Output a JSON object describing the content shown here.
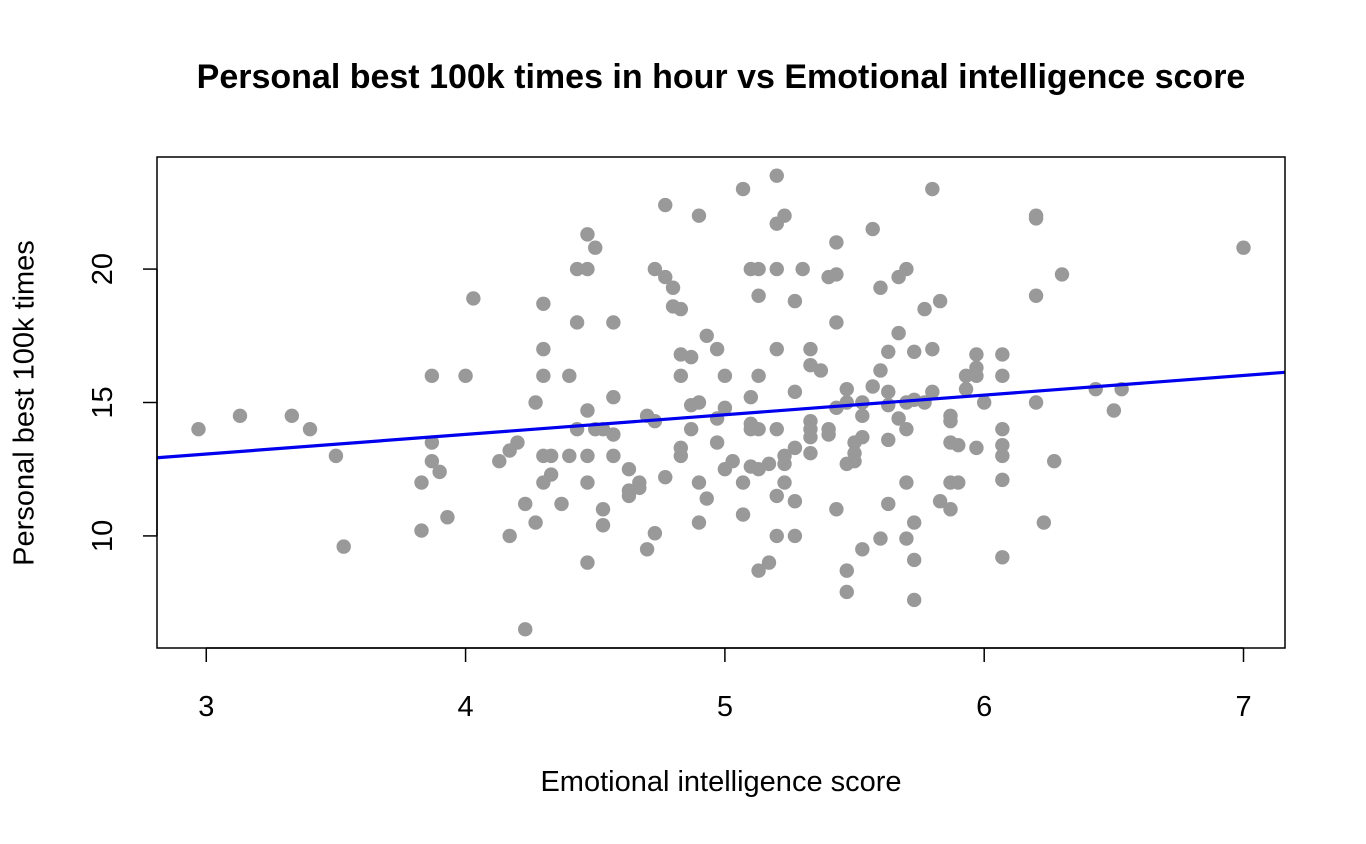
{
  "chart_data": {
    "type": "scatter",
    "title": "Personal best 100k times in hour vs Emotional intelligence score",
    "xlabel": "Emotional intelligence score",
    "ylabel": "Personal best 100k times",
    "xlim": [
      2.81,
      7.16
    ],
    "ylim": [
      5.8,
      24.2
    ],
    "xticks": [
      3,
      4,
      5,
      6,
      7
    ],
    "yticks": [
      10,
      15,
      20
    ],
    "point_color": "#999999",
    "line_color": "#0000ee",
    "regression_line": {
      "intercept": 10.86,
      "slope": 0.7363
    },
    "grid": false,
    "legend": "none",
    "points": [
      [
        2.97,
        14.0
      ],
      [
        3.13,
        14.5
      ],
      [
        3.33,
        14.5
      ],
      [
        3.4,
        14.0
      ],
      [
        3.5,
        13.0
      ],
      [
        3.53,
        9.6
      ],
      [
        3.83,
        12.0
      ],
      [
        3.83,
        10.2
      ],
      [
        3.87,
        13.5
      ],
      [
        3.87,
        16.0
      ],
      [
        3.87,
        12.8
      ],
      [
        3.9,
        12.4
      ],
      [
        3.93,
        10.7
      ],
      [
        4.0,
        16.0
      ],
      [
        4.03,
        18.9
      ],
      [
        4.13,
        12.8
      ],
      [
        4.17,
        13.2
      ],
      [
        4.17,
        10.0
      ],
      [
        4.2,
        13.5
      ],
      [
        4.23,
        11.2
      ],
      [
        4.23,
        6.5
      ],
      [
        4.27,
        15.0
      ],
      [
        4.27,
        10.5
      ],
      [
        4.3,
        18.7
      ],
      [
        4.3,
        17.0
      ],
      [
        4.3,
        16.0
      ],
      [
        4.3,
        13.0
      ],
      [
        4.3,
        12.0
      ],
      [
        4.33,
        13.0
      ],
      [
        4.33,
        12.3
      ],
      [
        4.37,
        11.2
      ],
      [
        4.4,
        16.0
      ],
      [
        4.4,
        13.0
      ],
      [
        4.43,
        20.0
      ],
      [
        4.43,
        18.0
      ],
      [
        4.43,
        14.0
      ],
      [
        4.47,
        21.3
      ],
      [
        4.47,
        20.0
      ],
      [
        4.47,
        14.7
      ],
      [
        4.47,
        13.0
      ],
      [
        4.47,
        12.0
      ],
      [
        4.47,
        9.0
      ],
      [
        4.5,
        20.8
      ],
      [
        4.5,
        14.0
      ],
      [
        4.53,
        14.0
      ],
      [
        4.53,
        11.0
      ],
      [
        4.53,
        10.4
      ],
      [
        4.57,
        18.0
      ],
      [
        4.57,
        15.2
      ],
      [
        4.57,
        13.8
      ],
      [
        4.57,
        13.0
      ],
      [
        4.63,
        12.5
      ],
      [
        4.63,
        11.7
      ],
      [
        4.63,
        11.5
      ],
      [
        4.67,
        12.0
      ],
      [
        4.67,
        11.8
      ],
      [
        4.7,
        14.5
      ],
      [
        4.7,
        9.5
      ],
      [
        4.73,
        20.0
      ],
      [
        4.73,
        14.3
      ],
      [
        4.73,
        10.1
      ],
      [
        4.77,
        22.4
      ],
      [
        4.77,
        19.7
      ],
      [
        4.77,
        12.2
      ],
      [
        4.8,
        19.3
      ],
      [
        4.8,
        18.6
      ],
      [
        4.83,
        18.5
      ],
      [
        4.83,
        16.8
      ],
      [
        4.83,
        16.0
      ],
      [
        4.83,
        13.3
      ],
      [
        4.83,
        13.0
      ],
      [
        4.87,
        16.7
      ],
      [
        4.87,
        14.9
      ],
      [
        4.87,
        14.0
      ],
      [
        4.9,
        22.0
      ],
      [
        4.9,
        15.0
      ],
      [
        4.9,
        12.0
      ],
      [
        4.9,
        10.5
      ],
      [
        4.93,
        17.5
      ],
      [
        4.93,
        11.4
      ],
      [
        4.97,
        17.0
      ],
      [
        4.97,
        14.4
      ],
      [
        4.97,
        13.5
      ],
      [
        5.0,
        16.0
      ],
      [
        5.0,
        14.8
      ],
      [
        5.0,
        12.5
      ],
      [
        5.03,
        12.8
      ],
      [
        5.07,
        23.0
      ],
      [
        5.07,
        12.0
      ],
      [
        5.07,
        10.8
      ],
      [
        5.1,
        20.0
      ],
      [
        5.1,
        15.2
      ],
      [
        5.1,
        14.2
      ],
      [
        5.1,
        14.0
      ],
      [
        5.1,
        12.6
      ],
      [
        5.13,
        20.0
      ],
      [
        5.13,
        19.0
      ],
      [
        5.13,
        16.0
      ],
      [
        5.13,
        14.0
      ],
      [
        5.13,
        12.5
      ],
      [
        5.13,
        8.7
      ],
      [
        5.17,
        12.7
      ],
      [
        5.17,
        9.0
      ],
      [
        5.2,
        23.5
      ],
      [
        5.2,
        21.7
      ],
      [
        5.2,
        20.0
      ],
      [
        5.2,
        17.0
      ],
      [
        5.2,
        14.0
      ],
      [
        5.2,
        11.5
      ],
      [
        5.2,
        10.0
      ],
      [
        5.23,
        22.0
      ],
      [
        5.23,
        13.0
      ],
      [
        5.23,
        12.7
      ],
      [
        5.23,
        12.0
      ],
      [
        5.27,
        18.8
      ],
      [
        5.27,
        15.4
      ],
      [
        5.27,
        13.3
      ],
      [
        5.27,
        11.3
      ],
      [
        5.27,
        10.0
      ],
      [
        5.3,
        20.0
      ],
      [
        5.33,
        17.0
      ],
      [
        5.33,
        16.4
      ],
      [
        5.33,
        14.3
      ],
      [
        5.33,
        14.0
      ],
      [
        5.33,
        13.7
      ],
      [
        5.33,
        13.1
      ],
      [
        5.37,
        16.2
      ],
      [
        5.4,
        19.7
      ],
      [
        5.4,
        14.0
      ],
      [
        5.4,
        13.8
      ],
      [
        5.43,
        21.0
      ],
      [
        5.43,
        19.8
      ],
      [
        5.43,
        18.0
      ],
      [
        5.43,
        14.8
      ],
      [
        5.43,
        11.0
      ],
      [
        5.47,
        15.5
      ],
      [
        5.47,
        15.0
      ],
      [
        5.47,
        12.7
      ],
      [
        5.47,
        8.7
      ],
      [
        5.47,
        7.9
      ],
      [
        5.5,
        13.5
      ],
      [
        5.5,
        13.1
      ],
      [
        5.5,
        12.8
      ],
      [
        5.53,
        15.0
      ],
      [
        5.53,
        14.5
      ],
      [
        5.53,
        13.7
      ],
      [
        5.53,
        9.5
      ],
      [
        5.57,
        21.5
      ],
      [
        5.57,
        15.6
      ],
      [
        5.6,
        19.3
      ],
      [
        5.6,
        16.2
      ],
      [
        5.6,
        9.9
      ],
      [
        5.63,
        16.9
      ],
      [
        5.63,
        15.4
      ],
      [
        5.63,
        14.9
      ],
      [
        5.63,
        13.6
      ],
      [
        5.63,
        11.2
      ],
      [
        5.67,
        19.7
      ],
      [
        5.67,
        17.6
      ],
      [
        5.67,
        14.4
      ],
      [
        5.7,
        20.0
      ],
      [
        5.7,
        15.0
      ],
      [
        5.7,
        14.0
      ],
      [
        5.7,
        12.0
      ],
      [
        5.7,
        9.9
      ],
      [
        5.73,
        16.9
      ],
      [
        5.73,
        15.1
      ],
      [
        5.73,
        10.5
      ],
      [
        5.73,
        9.1
      ],
      [
        5.73,
        7.6
      ],
      [
        5.77,
        18.5
      ],
      [
        5.77,
        15.0
      ],
      [
        5.8,
        23.0
      ],
      [
        5.8,
        17.0
      ],
      [
        5.8,
        15.4
      ],
      [
        5.83,
        18.8
      ],
      [
        5.83,
        11.3
      ],
      [
        5.87,
        14.5
      ],
      [
        5.87,
        14.3
      ],
      [
        5.87,
        13.5
      ],
      [
        5.87,
        12.0
      ],
      [
        5.87,
        11.0
      ],
      [
        5.9,
        13.4
      ],
      [
        5.9,
        12.0
      ],
      [
        5.93,
        16.0
      ],
      [
        5.93,
        15.5
      ],
      [
        5.97,
        16.8
      ],
      [
        5.97,
        16.3
      ],
      [
        5.97,
        16.0
      ],
      [
        5.97,
        13.3
      ],
      [
        6.0,
        15.0
      ],
      [
        6.07,
        16.8
      ],
      [
        6.07,
        16.0
      ],
      [
        6.07,
        14.0
      ],
      [
        6.07,
        13.4
      ],
      [
        6.07,
        13.0
      ],
      [
        6.07,
        12.1
      ],
      [
        6.07,
        9.2
      ],
      [
        6.2,
        22.0
      ],
      [
        6.2,
        21.9
      ],
      [
        6.2,
        19.0
      ],
      [
        6.2,
        15.0
      ],
      [
        6.23,
        10.5
      ],
      [
        6.27,
        12.8
      ],
      [
        6.3,
        19.8
      ],
      [
        6.43,
        15.5
      ],
      [
        6.5,
        14.7
      ],
      [
        6.53,
        15.5
      ],
      [
        7.0,
        20.8
      ]
    ]
  }
}
